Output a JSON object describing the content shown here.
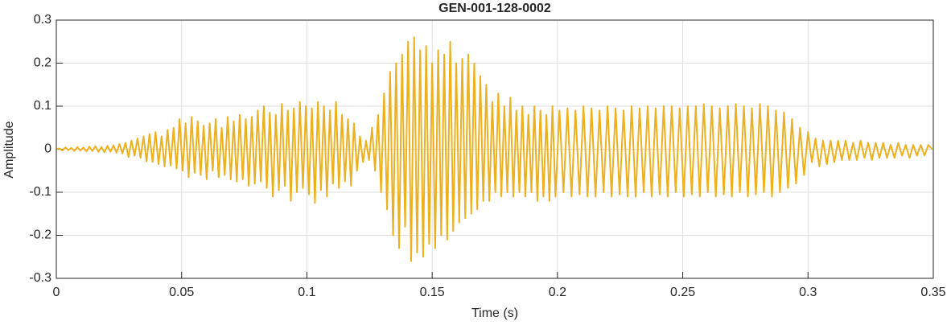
{
  "chart_data": {
    "type": "line",
    "title": "GEN-001-128-0002",
    "xlabel": "Time (s)",
    "ylabel": "Amplitude",
    "color": "#EDB120",
    "grid": true,
    "xlim": [
      0,
      0.35
    ],
    "xticks": [
      0,
      0.05,
      0.1,
      0.15,
      0.2,
      0.25,
      0.3,
      0.35
    ],
    "ylim": [
      -0.3,
      0.3
    ],
    "yticks": [
      -0.3,
      -0.2,
      -0.1,
      0,
      0.1,
      0.2,
      0.3
    ],
    "x": [
      0,
      0.0012,
      0.0024,
      0.0036,
      0.0048,
      0.006,
      0.0072,
      0.0084,
      0.0096,
      0.0108,
      0.012,
      0.0132,
      0.0144,
      0.0156,
      0.0168,
      0.018,
      0.0192,
      0.0204,
      0.0216,
      0.0228,
      0.024,
      0.0252,
      0.0264,
      0.0276,
      0.0288,
      0.03,
      0.0312,
      0.0324,
      0.0336,
      0.0348,
      0.036,
      0.0372,
      0.0384,
      0.0396,
      0.0408,
      0.042,
      0.0432,
      0.0444,
      0.0456,
      0.0468,
      0.048,
      0.0492,
      0.0504,
      0.0516,
      0.0528,
      0.054,
      0.0552,
      0.0564,
      0.0576,
      0.0588,
      0.06,
      0.0612,
      0.0624,
      0.0636,
      0.0648,
      0.066,
      0.0672,
      0.0684,
      0.0696,
      0.0708,
      0.072,
      0.0732,
      0.0744,
      0.0756,
      0.0768,
      0.078,
      0.0792,
      0.0804,
      0.0816,
      0.0828,
      0.084,
      0.0852,
      0.0864,
      0.0876,
      0.0888,
      0.09,
      0.0912,
      0.0924,
      0.0936,
      0.0948,
      0.096,
      0.0972,
      0.0984,
      0.0996,
      0.1008,
      0.102,
      0.1032,
      0.1044,
      0.1056,
      0.1068,
      0.108,
      0.1092,
      0.1104,
      0.1116,
      0.1128,
      0.114,
      0.1152,
      0.1164,
      0.1176,
      0.1188,
      0.12,
      0.1212,
      0.1224,
      0.1236,
      0.1248,
      0.126,
      0.1272,
      0.1284,
      0.1296,
      0.1308,
      0.132,
      0.1332,
      0.1344,
      0.1356,
      0.1368,
      0.138,
      0.1392,
      0.1404,
      0.1416,
      0.1428,
      0.144,
      0.1452,
      0.1464,
      0.1476,
      0.1488,
      0.15,
      0.1512,
      0.1524,
      0.1536,
      0.1548,
      0.156,
      0.1572,
      0.1584,
      0.1596,
      0.1608,
      0.162,
      0.1632,
      0.1644,
      0.1656,
      0.1668,
      0.168,
      0.1692,
      0.1704,
      0.1716,
      0.1728,
      0.174,
      0.1752,
      0.1764,
      0.1776,
      0.1788,
      0.18,
      0.1812,
      0.1824,
      0.1836,
      0.1848,
      0.186,
      0.1872,
      0.1884,
      0.1896,
      0.1908,
      0.192,
      0.1932,
      0.1944,
      0.1956,
      0.1968,
      0.198,
      0.1992,
      0.2008,
      0.2024,
      0.204,
      0.2056,
      0.2072,
      0.2088,
      0.2104,
      0.212,
      0.2136,
      0.2152,
      0.2168,
      0.2184,
      0.22,
      0.2216,
      0.2232,
      0.2248,
      0.2264,
      0.228,
      0.2296,
      0.2312,
      0.2328,
      0.2344,
      0.236,
      0.2376,
      0.2392,
      0.2408,
      0.2424,
      0.244,
      0.2456,
      0.2472,
      0.2488,
      0.2504,
      0.252,
      0.2536,
      0.2552,
      0.2568,
      0.2584,
      0.26,
      0.2616,
      0.2632,
      0.2648,
      0.2664,
      0.268,
      0.2696,
      0.2712,
      0.2728,
      0.2744,
      0.276,
      0.2776,
      0.2792,
      0.2808,
      0.2824,
      0.284,
      0.2856,
      0.2872,
      0.2888,
      0.2904,
      0.292,
      0.2936,
      0.2952,
      0.2968,
      0.2984,
      0.3,
      0.3015,
      0.303,
      0.3045,
      0.306,
      0.3075,
      0.309,
      0.3105,
      0.312,
      0.3135,
      0.315,
      0.3165,
      0.318,
      0.3195,
      0.321,
      0.3225,
      0.324,
      0.3255,
      0.327,
      0.3285,
      0.33,
      0.3315,
      0.333,
      0.3345,
      0.336,
      0.3375,
      0.339,
      0.3405,
      0.342,
      0.3435,
      0.345,
      0.3465,
      0.348,
      0.3495
    ],
    "values": [
      0,
      0.002,
      -0.003,
      0.004,
      -0.002,
      0.003,
      -0.004,
      0.005,
      -0.003,
      0.004,
      -0.005,
      0.006,
      -0.004,
      0.007,
      -0.006,
      0.005,
      -0.007,
      0.008,
      -0.006,
      0.009,
      -0.008,
      0.012,
      -0.01,
      0.015,
      -0.018,
      0.02,
      -0.015,
      0.025,
      -0.02,
      0.03,
      -0.028,
      0.035,
      -0.03,
      0.04,
      -0.035,
      0.03,
      -0.04,
      0.045,
      -0.038,
      0.05,
      -0.045,
      0.07,
      -0.05,
      0.06,
      -0.065,
      0.075,
      -0.055,
      0.065,
      -0.06,
      0.055,
      -0.07,
      0.06,
      -0.05,
      0.07,
      -0.065,
      0.05,
      -0.06,
      0.075,
      -0.07,
      0.065,
      -0.075,
      0.08,
      -0.07,
      0.07,
      -0.085,
      0.075,
      -0.08,
      0.09,
      -0.075,
      0.1,
      -0.09,
      0.085,
      -0.11,
      0.08,
      -0.095,
      0.105,
      -0.085,
      0.09,
      -0.12,
      0.095,
      -0.1,
      0.11,
      -0.09,
      0.1,
      -0.105,
      0.095,
      -0.125,
      0.11,
      -0.095,
      0.1,
      -0.11,
      0.09,
      -0.08,
      0.11,
      -0.09,
      0.08,
      -0.075,
      0.07,
      -0.085,
      0.06,
      -0.05,
      0.03,
      -0.03,
      0.02,
      -0.025,
      0.05,
      -0.05,
      0.08,
      -0.1,
      0.13,
      -0.14,
      0.18,
      -0.2,
      0.2,
      -0.23,
      0.22,
      -0.18,
      0.25,
      -0.26,
      0.26,
      -0.24,
      0.23,
      -0.25,
      0.24,
      -0.22,
      0.2,
      -0.23,
      0.23,
      -0.2,
      0.22,
      -0.21,
      0.25,
      -0.19,
      0.2,
      -0.17,
      0.21,
      -0.16,
      0.22,
      -0.15,
      0.2,
      -0.14,
      0.17,
      -0.12,
      0.15,
      -0.12,
      0.11,
      -0.1,
      0.13,
      -0.11,
      0.1,
      -0.1,
      0.12,
      -0.11,
      0.09,
      -0.1,
      0.1,
      -0.11,
      0.08,
      -0.1,
      0.1,
      -0.12,
      0.09,
      -0.11,
      0.08,
      -0.12,
      0.1,
      -0.11,
      0.09,
      -0.1,
      0.095,
      -0.11,
      0.09,
      -0.105,
      0.1,
      -0.11,
      0.095,
      -0.11,
      0.09,
      -0.1,
      0.1,
      -0.11,
      0.095,
      -0.105,
      0.09,
      -0.11,
      0.1,
      -0.11,
      0.095,
      -0.1,
      0.1,
      -0.11,
      0.095,
      -0.105,
      0.1,
      -0.11,
      0.1,
      -0.1,
      0.095,
      -0.11,
      0.1,
      -0.105,
      0.1,
      -0.11,
      0.105,
      -0.1,
      0.1,
      -0.11,
      0.095,
      -0.105,
      0.1,
      -0.11,
      0.105,
      -0.1,
      0.1,
      -0.11,
      0.095,
      -0.105,
      0.105,
      -0.1,
      0.1,
      -0.11,
      0.09,
      -0.1,
      0.085,
      -0.09,
      0.07,
      -0.08,
      0.05,
      -0.06,
      0.04,
      -0.03,
      0.025,
      -0.04,
      0.02,
      -0.035,
      0.02,
      -0.03,
      0.02,
      -0.025,
      0.02,
      -0.025,
      0.015,
      -0.025,
      0.02,
      -0.02,
      0.015,
      -0.025,
      0.015,
      -0.02,
      0.015,
      -0.02,
      0.01,
      -0.02,
      0.015,
      -0.015,
      0.01,
      -0.02,
      0.01,
      -0.015,
      0.01,
      -0.015,
      0.01,
      0.0
    ]
  }
}
